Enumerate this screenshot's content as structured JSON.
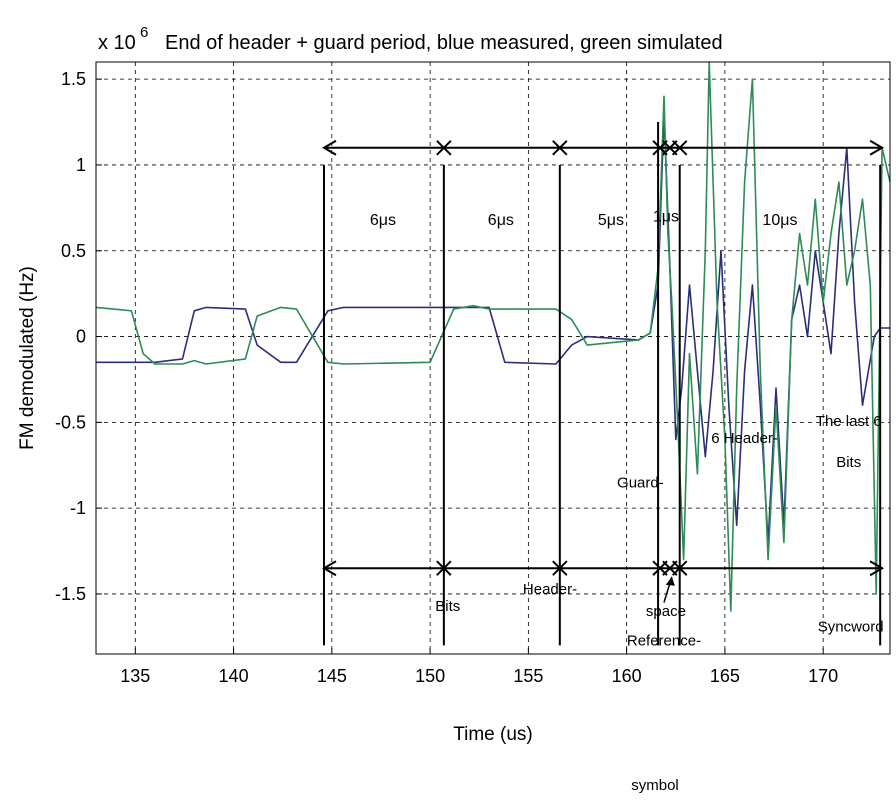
{
  "chart_data": {
    "type": "line",
    "title": "End of header + guard period, blue measured, green simulated",
    "y_multiplier": "x 10",
    "y_multiplier_exp": "6",
    "xlabel": "Time (us)",
    "ylabel": "FM demodulated (Hz)",
    "xlim": [
      133,
      173.4
    ],
    "ylim": [
      -1.85,
      1.6
    ],
    "xticks": [
      135,
      140,
      145,
      150,
      155,
      160,
      165,
      170
    ],
    "xtick_labels": [
      "135",
      "140",
      "145",
      "150",
      "155",
      "160",
      "165",
      "170"
    ],
    "yticks": [
      1.5,
      1,
      0.5,
      0,
      -0.5,
      -1,
      -1.5
    ],
    "ytick_labels": [
      "1.5",
      "1",
      "0.5",
      "0",
      "-0.5",
      "-1",
      "-1.5"
    ],
    "grid": true,
    "colors": {
      "measured": "#2b2f7a",
      "simulated": "#2e8b57"
    },
    "series": [
      {
        "color": "blue",
        "x": [
          133,
          134.6,
          135.4,
          136,
          137.4,
          138,
          138.6,
          140.6,
          141.2,
          142.4,
          143.2,
          144.8,
          145.6,
          150,
          151.2,
          152.2,
          153,
          153.8,
          156.4,
          157.2,
          158,
          160.6,
          161.2,
          161.6,
          161.9,
          162.2,
          162.5,
          162.8,
          163.2,
          163.6,
          164,
          164.4,
          164.8,
          165.2,
          165.6,
          166,
          166.4,
          166.8,
          167.2,
          167.6,
          168,
          168.4,
          168.8,
          169.2,
          169.6,
          170,
          170.4,
          170.8,
          171.2,
          171.6,
          172,
          172.3,
          172.6,
          172.9,
          173.2,
          173.4
        ],
        "y": [
          -0.15,
          -0.15,
          -0.15,
          -0.15,
          -0.13,
          0.15,
          0.17,
          0.16,
          -0.05,
          -0.15,
          -0.15,
          0.15,
          0.17,
          0.17,
          0.17,
          0.17,
          0.17,
          -0.15,
          -0.16,
          -0.05,
          0.0,
          -0.02,
          0.02,
          0.3,
          1.3,
          0.4,
          -0.6,
          -0.3,
          0.3,
          -0.2,
          -0.7,
          -0.2,
          0.5,
          -0.4,
          -1.1,
          -0.2,
          0.3,
          -0.4,
          -1.2,
          -0.3,
          -1.1,
          0.1,
          0.3,
          0.0,
          0.5,
          0.2,
          -0.1,
          0.6,
          1.1,
          0.2,
          -0.4,
          -0.2,
          0.0,
          0.05,
          0.05,
          0.05
        ]
      },
      {
        "color": "green",
        "x": [
          133,
          134.8,
          135.4,
          136,
          137.4,
          138,
          138.6,
          140.6,
          141.2,
          142.4,
          143.2,
          144.8,
          145.6,
          150,
          151.2,
          152.2,
          153,
          153.8,
          156.4,
          157.2,
          158,
          160.6,
          161.2,
          161.6,
          161.9,
          162.1,
          162.3,
          162.6,
          162.9,
          163.2,
          163.6,
          164,
          164.2,
          164.6,
          165,
          165.3,
          165.6,
          166,
          166.4,
          166.8,
          167.2,
          167.6,
          168,
          168.4,
          168.8,
          169.2,
          169.6,
          170,
          170.4,
          170.8,
          171.2,
          171.6,
          172,
          172.4,
          172.7,
          173,
          173.4
        ],
        "y": [
          0.17,
          0.15,
          -0.1,
          -0.16,
          -0.16,
          -0.14,
          -0.16,
          -0.13,
          0.12,
          0.17,
          0.16,
          -0.15,
          -0.16,
          -0.15,
          0.16,
          0.18,
          0.16,
          0.16,
          0.16,
          0.1,
          -0.05,
          -0.02,
          0.02,
          0.4,
          1.4,
          0.6,
          0.2,
          -0.5,
          -1.3,
          -0.1,
          -0.8,
          0.5,
          1.6,
          0.2,
          -0.6,
          -1.6,
          -0.3,
          0.9,
          1.5,
          -0.2,
          -1.3,
          -0.4,
          -1.2,
          0.1,
          0.6,
          0.3,
          0.8,
          0.2,
          0.6,
          0.9,
          0.3,
          0.5,
          0.8,
          0.3,
          -1.5,
          1.1,
          0.9
        ]
      }
    ],
    "arrows": [
      {
        "y": 1.1,
        "points": [
          144.6,
          150.7,
          156.6,
          161.7,
          162.2,
          162.7,
          173.0
        ]
      },
      {
        "y": -1.35,
        "points": [
          144.6,
          150.7,
          156.6,
          161.7,
          162.2,
          162.7,
          173.0
        ]
      }
    ],
    "vlines": [
      {
        "x": 144.6,
        "y1": 1.0,
        "y2": -1.8
      },
      {
        "x": 150.7,
        "y1": 1.0,
        "y2": -1.8
      },
      {
        "x": 156.6,
        "y1": 1.0,
        "y2": -1.8
      },
      {
        "x": 161.6,
        "y1": 1.25,
        "y2": -1.8
      },
      {
        "x": 162.7,
        "y1": 1.0,
        "y2": -1.8
      },
      {
        "x": 172.9,
        "y1": 1.0,
        "y2": -1.8
      }
    ],
    "durations": [
      {
        "x": 147.6,
        "y": 0.65,
        "text": "6μs"
      },
      {
        "x": 153.6,
        "y": 0.65,
        "text": "6μs"
      },
      {
        "x": 159.2,
        "y": 0.65,
        "text": "5μs"
      },
      {
        "x": 162.0,
        "y": 0.67,
        "text": "1μs"
      },
      {
        "x": 167.8,
        "y": 0.65,
        "text": "10μs"
      }
    ],
    "annotations": [
      {
        "x": 150.9,
        "y": -1.6,
        "text": "Bits"
      },
      {
        "x": 156.1,
        "y": -1.5,
        "text": "Header-"
      },
      {
        "x": 162.0,
        "y": -1.63,
        "text": "space"
      },
      {
        "x": 161.9,
        "y": -1.8,
        "text": "Reference-"
      },
      {
        "x": 160.7,
        "y": -0.88,
        "text": "Guard-"
      },
      {
        "x": 166.0,
        "y": -0.62,
        "text": "6 Header-"
      },
      {
        "x": 171.3,
        "y": -0.52,
        "text": "The last 6"
      },
      {
        "x": 171.3,
        "y": -0.76,
        "text": "Bits"
      },
      {
        "x": 171.4,
        "y": -1.72,
        "text": "Syncword"
      }
    ],
    "pointer": {
      "from": [
        161.9,
        -1.55
      ],
      "to": [
        162.3,
        -1.4
      ]
    },
    "footer_note": "symbol"
  }
}
